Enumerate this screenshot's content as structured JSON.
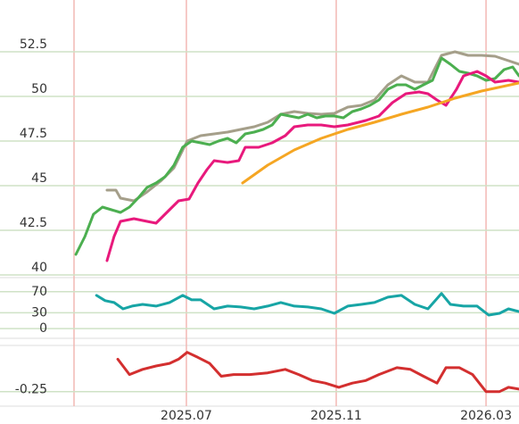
{
  "chart_data": [
    {
      "type": "line",
      "ylim": [
        39.9,
        55.4
      ],
      "yticks": [
        52.5,
        50,
        47.5,
        45,
        42.5,
        40
      ],
      "grid": true,
      "series": [
        {
          "color": "#a59f8a",
          "x": [
            3.88,
            4.12,
            4.24,
            4.6,
            4.95,
            5.31,
            5.67,
            6.02,
            6.38,
            6.74,
            7.1,
            7.45,
            7.81,
            8.17,
            8.52,
            8.88,
            9.24,
            9.6,
            9.95,
            10.31,
            10.67,
            11.02,
            11.38,
            11.74,
            12.1,
            12.45,
            12.81,
            13.17,
            13.52,
            13.88,
            14.24,
            14.6,
            14.88
          ],
          "values": [
            44.75,
            44.75,
            44.3,
            44.15,
            44.65,
            45.25,
            46.0,
            47.5,
            47.8,
            47.9,
            48.0,
            48.15,
            48.3,
            48.55,
            49.0,
            49.15,
            49.05,
            49.0,
            49.05,
            49.4,
            49.5,
            49.8,
            50.65,
            51.15,
            50.8,
            50.8,
            52.3,
            52.5,
            52.3,
            52.3,
            52.25,
            52.0,
            51.8
          ]
        },
        {
          "color": "#4caf50",
          "x": [
            3.05,
            3.29,
            3.52,
            3.76,
            4.0,
            4.24,
            4.48,
            4.71,
            4.95,
            5.19,
            5.43,
            5.67,
            5.9,
            6.14,
            6.38,
            6.62,
            6.86,
            7.1,
            7.33,
            7.57,
            7.81,
            8.05,
            8.29,
            8.52,
            8.76,
            9.0,
            9.24,
            9.48,
            9.71,
            9.95,
            10.19,
            10.43,
            10.67,
            10.9,
            11.14,
            11.38,
            11.62,
            11.86,
            12.1,
            12.33,
            12.57,
            12.81,
            13.05,
            13.29,
            13.52,
            13.76,
            14.0,
            14.24,
            14.48,
            14.71,
            14.88
          ],
          "values": [
            41.15,
            42.15,
            43.4,
            43.8,
            43.65,
            43.5,
            43.8,
            44.3,
            44.9,
            45.15,
            45.5,
            46.15,
            47.15,
            47.5,
            47.4,
            47.3,
            47.5,
            47.65,
            47.4,
            47.9,
            48.0,
            48.15,
            48.4,
            49.0,
            48.9,
            48.8,
            49.0,
            48.8,
            48.9,
            48.9,
            48.8,
            49.15,
            49.3,
            49.5,
            49.8,
            50.4,
            50.65,
            50.65,
            50.4,
            50.65,
            50.9,
            52.15,
            51.8,
            51.4,
            51.3,
            51.15,
            50.9,
            51.0,
            51.5,
            51.65,
            51.15
          ]
        },
        {
          "color": "#e8197c",
          "x": [
            3.88,
            4.07,
            4.24,
            4.6,
            4.95,
            5.19,
            5.55,
            5.79,
            6.07,
            6.31,
            6.55,
            6.74,
            7.1,
            7.4,
            7.57,
            7.93,
            8.29,
            8.64,
            8.88,
            9.24,
            9.6,
            9.95,
            10.31,
            10.79,
            11.14,
            11.5,
            11.86,
            12.21,
            12.45,
            12.69,
            12.93,
            13.21,
            13.4,
            13.76,
            14.0,
            14.24,
            14.6,
            14.88
          ],
          "values": [
            40.8,
            42.15,
            43.0,
            43.15,
            43.0,
            42.9,
            43.65,
            44.15,
            44.25,
            45.15,
            45.9,
            46.4,
            46.3,
            46.4,
            47.15,
            47.15,
            47.4,
            47.8,
            48.3,
            48.4,
            48.4,
            48.3,
            48.4,
            48.65,
            48.9,
            49.65,
            50.15,
            50.25,
            50.15,
            49.8,
            49.5,
            50.4,
            51.15,
            51.4,
            51.15,
            50.8,
            50.9,
            50.8
          ]
        },
        {
          "color": "#f5a623",
          "x": [
            7.5,
            8.17,
            8.88,
            9.6,
            10.31,
            11.02,
            11.74,
            12.45,
            13.17,
            13.88,
            14.88
          ],
          "values": [
            45.15,
            46.15,
            47.0,
            47.65,
            48.15,
            48.55,
            49.0,
            49.4,
            49.9,
            50.3,
            50.75
          ]
        }
      ]
    },
    {
      "type": "line",
      "ylim": [
        -20,
        95
      ],
      "yticks": [
        70,
        30,
        0
      ],
      "grid": true,
      "series": [
        {
          "color": "#17a5a5",
          "x": [
            3.6,
            3.83,
            4.07,
            4.31,
            4.55,
            4.83,
            5.19,
            5.55,
            5.9,
            6.14,
            6.38,
            6.74,
            7.1,
            7.45,
            7.81,
            8.17,
            8.52,
            8.88,
            9.24,
            9.6,
            9.95,
            10.31,
            10.67,
            11.02,
            11.38,
            11.74,
            12.1,
            12.45,
            12.81,
            13.05,
            13.4,
            13.76,
            14.07,
            14.36,
            14.6,
            14.88
          ],
          "values": [
            63,
            53,
            49.5,
            37.5,
            42.7,
            46,
            42.7,
            49.5,
            63,
            54.6,
            54.6,
            37.5,
            42.7,
            41,
            37.5,
            42.7,
            49.5,
            42.7,
            41,
            37.5,
            29,
            42.7,
            46,
            49.5,
            59.7,
            63,
            46,
            37.5,
            66.6,
            46,
            42.7,
            42.7,
            25.6,
            29,
            37.5,
            32.4
          ]
        }
      ]
    },
    {
      "type": "line",
      "ylim": [
        -0.335,
        0.015
      ],
      "yticks": [
        -0.25
      ],
      "grid": true,
      "xlim": [
        3,
        14.88
      ],
      "xticks": [
        {
          "value": 3,
          "label": null
        },
        {
          "value": 6,
          "label": "2025.07"
        },
        {
          "value": 10,
          "label": "2025.11"
        },
        {
          "value": 14,
          "label": "2026.03"
        }
      ],
      "series": [
        {
          "color": "#d32f2f",
          "x": [
            4.17,
            4.48,
            4.83,
            5.19,
            5.55,
            5.79,
            6.02,
            6.31,
            6.62,
            6.93,
            7.26,
            7.69,
            8.17,
            8.64,
            9.0,
            9.36,
            9.71,
            10.07,
            10.43,
            10.79,
            11.14,
            11.62,
            11.98,
            12.33,
            12.69,
            12.93,
            13.29,
            13.64,
            14.0,
            14.36,
            14.6,
            14.88
          ],
          "values": [
            -0.06,
            -0.15,
            -0.12,
            -0.1,
            -0.085,
            -0.06,
            -0.02,
            -0.05,
            -0.085,
            -0.16,
            -0.15,
            -0.15,
            -0.14,
            -0.12,
            -0.15,
            -0.185,
            -0.2,
            -0.225,
            -0.2,
            -0.185,
            -0.15,
            -0.11,
            -0.12,
            -0.16,
            -0.2,
            -0.11,
            -0.11,
            -0.15,
            -0.25,
            -0.25,
            -0.225,
            -0.235
          ]
        }
      ]
    }
  ]
}
